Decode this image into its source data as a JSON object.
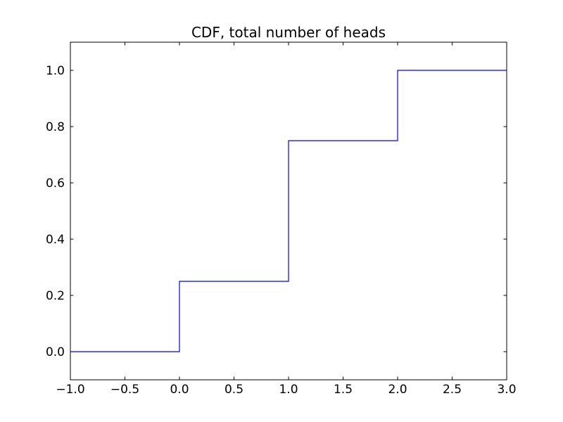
{
  "figure": {
    "background_color": "#ffffff",
    "axis_color": "#000000",
    "text_color": "#000000"
  },
  "chart_data": {
    "type": "line",
    "subtype": "step",
    "title": "CDF, total number of heads",
    "xlabel": "",
    "ylabel": "",
    "grid": false,
    "legend": null,
    "xlim": [
      -1.0,
      3.0
    ],
    "ylim": [
      -0.1,
      1.1
    ],
    "x_ticks": [
      -1.0,
      -0.5,
      0.0,
      0.5,
      1.0,
      1.5,
      2.0,
      2.5,
      3.0
    ],
    "x_tick_labels": [
      "−1.0",
      "−0.5",
      "0.0",
      "0.5",
      "1.0",
      "1.5",
      "2.0",
      "2.5",
      "3.0"
    ],
    "y_ticks": [
      0.0,
      0.2,
      0.4,
      0.6,
      0.8,
      1.0
    ],
    "y_tick_labels": [
      "0.0",
      "0.2",
      "0.4",
      "0.6",
      "0.8",
      "1.0"
    ],
    "series": [
      {
        "name": "cdf-step-line",
        "color": "#0000ff",
        "points": [
          [
            -1.0,
            0.0
          ],
          [
            0.0,
            0.0
          ],
          [
            0.0,
            0.25
          ],
          [
            1.0,
            0.25
          ],
          [
            1.0,
            0.75
          ],
          [
            2.0,
            0.75
          ],
          [
            2.0,
            1.0
          ],
          [
            3.0,
            1.0
          ]
        ]
      }
    ],
    "step_values": [
      {
        "x": 0,
        "cdf": 0.25
      },
      {
        "x": 1,
        "cdf": 0.75
      },
      {
        "x": 2,
        "cdf": 1.0
      }
    ]
  }
}
